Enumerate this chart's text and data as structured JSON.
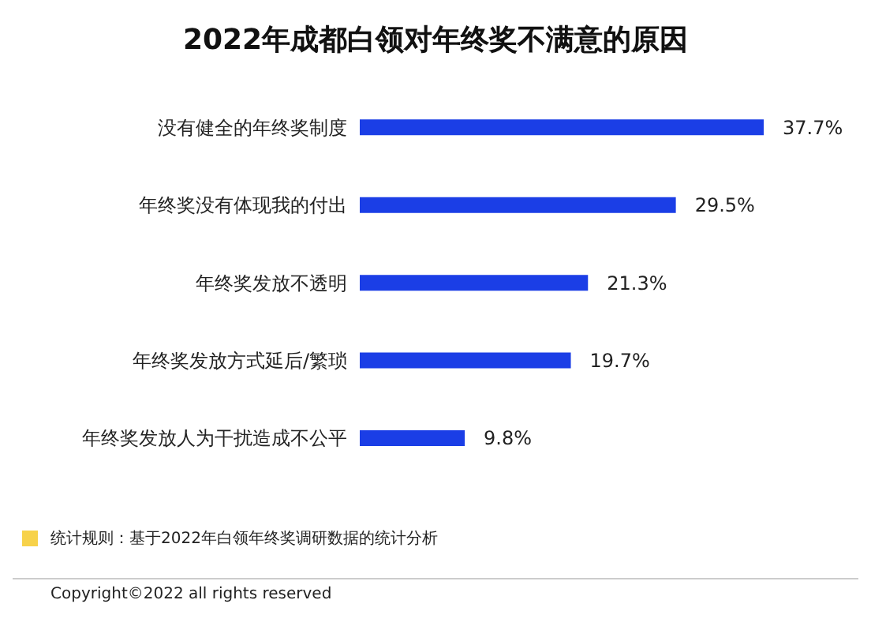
{
  "chart_data": {
    "type": "bar",
    "orientation": "horizontal",
    "title": "2022年成都白领对年终奖不满意的原因",
    "categories": [
      "没有健全的年终奖制度",
      "年终奖没有体现我的付出",
      "年终奖发放不透明",
      "年终奖发放方式延后/繁琐",
      "年终奖发放人为干扰造成不公平"
    ],
    "values": [
      37.7,
      29.5,
      21.3,
      19.7,
      9.8
    ],
    "color": "#1b3ee6",
    "data_labels": true,
    "value_labels": [
      "37.7%",
      "29.5%",
      "21.3%",
      "19.7%",
      "9.8%"
    ],
    "annotations": [
      "统计规则：基于2022年白领年终奖调研数据的统计分析",
      "Copyright©2022 all rights reserved"
    ]
  }
}
